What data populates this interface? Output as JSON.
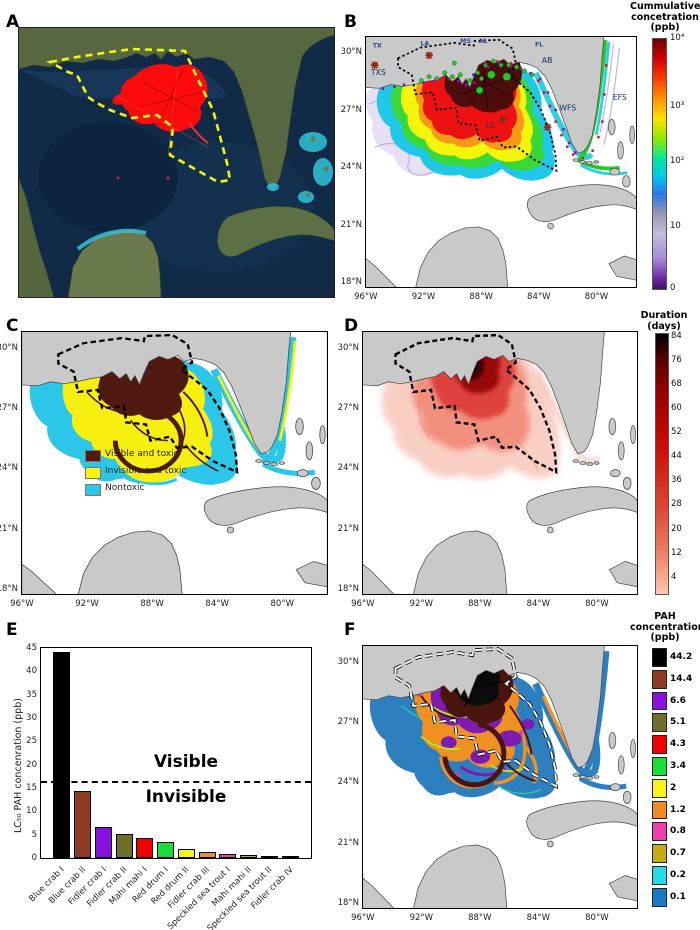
{
  "panels": {
    "a_label": "A",
    "b_label": "B",
    "c_label": "C",
    "d_label": "D",
    "e_label": "E",
    "f_label": "F"
  },
  "map_axes": {
    "lat_ticks": [
      "30°N",
      "27°N",
      "24°N",
      "21°N",
      "18°N"
    ],
    "lon_ticks": [
      "96°W",
      "92°W",
      "88°W",
      "84°W",
      "80°W"
    ]
  },
  "panel_b": {
    "colorbar_title_lines": [
      "Cummulative",
      "concetration",
      "(ppb)"
    ],
    "colorbar_ticks": [
      "10⁴",
      "10³",
      "10²",
      "10",
      "0"
    ],
    "state_labels": {
      "tx": "TX",
      "la": "LA",
      "ms": "MS",
      "al": "AL",
      "fl": "FL"
    },
    "region_labels": {
      "txs": "TXS",
      "lc": "LC",
      "ab": "AB",
      "wfs": "WFS",
      "efs": "EFS"
    }
  },
  "panel_c": {
    "legend": [
      {
        "label": "Visible and toxic",
        "color": "#4f1a10"
      },
      {
        "label": "Invisible and toxic",
        "color": "#f7f312"
      },
      {
        "label": "Nontoxic",
        "color": "#2cc7e8"
      }
    ]
  },
  "panel_d": {
    "colorbar_title_lines": [
      "Duration",
      "(days)"
    ],
    "colorbar_ticks": [
      "84",
      "76",
      "68",
      "60",
      "52",
      "44",
      "36",
      "28",
      "20",
      "12",
      "4"
    ]
  },
  "panel_f": {
    "colorbar_title_lines": [
      "PAH",
      "concentration",
      "(ppb)"
    ],
    "colorbar_entries": [
      {
        "value": "44.2",
        "color": "#000000"
      },
      {
        "value": "14.4",
        "color": "#8d3b22"
      },
      {
        "value": "6.6",
        "color": "#8812dd"
      },
      {
        "value": "5.1",
        "color": "#6f6f2a"
      },
      {
        "value": "4.3",
        "color": "#f50000"
      },
      {
        "value": "3.4",
        "color": "#17df38"
      },
      {
        "value": "2",
        "color": "#f8f513"
      },
      {
        "value": "1.2",
        "color": "#ef8b24"
      },
      {
        "value": "0.8",
        "color": "#ee3fae"
      },
      {
        "value": "0.7",
        "color": "#c3ac14"
      },
      {
        "value": "0.2",
        "color": "#25dbe8"
      },
      {
        "value": "0.1",
        "color": "#1b7ac2"
      }
    ]
  },
  "chart_data": {
    "type": "bar",
    "title": "",
    "categories": [
      "Blue crab I",
      "Blue crab II",
      "Fidler crab I",
      "Fidler crab II",
      "Mahi mahi I",
      "Red drum I",
      "Red drum II",
      "Fidler crab III",
      "Speckled sea trout I",
      "Mahi mahi II",
      "Speckled sea trout II",
      "Fidler crab IV"
    ],
    "values": [
      44.2,
      14.4,
      6.6,
      5.1,
      4.3,
      3.4,
      2,
      1.2,
      0.8,
      0.7,
      0.2,
      0.1
    ],
    "bar_colors": [
      "#000000",
      "#8d3b22",
      "#8812dd",
      "#6f6f2a",
      "#f50000",
      "#17df38",
      "#f8f513",
      "#ef8b24",
      "#ee3fae",
      "#c3ac14",
      "#25dbe8",
      "#1b7ac2"
    ],
    "xlabel": "",
    "ylabel": "LC₅₀ PAH concenration (ppb)",
    "yticks": [
      0,
      5,
      10,
      15,
      20,
      25,
      30,
      35,
      40,
      45
    ],
    "ylim": [
      0,
      45
    ],
    "threshold_value": 16.5,
    "annotation_above": "Visible",
    "annotation_below": "Invisible",
    "grid": false,
    "legend_position": "none"
  }
}
